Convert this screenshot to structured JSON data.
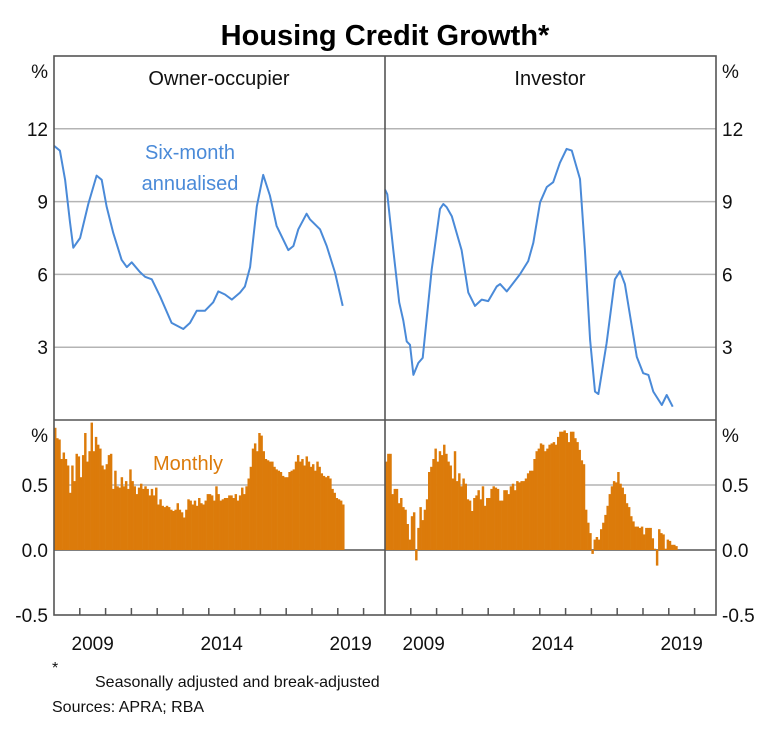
{
  "chart_data": [
    {
      "type": "line",
      "title": "Housing Credit Growth*",
      "panel": "Owner-occupier",
      "ylabel": "%",
      "ylim": [
        0,
        15
      ],
      "yticks": [
        3,
        6,
        9,
        12
      ],
      "xlim": [
        2008,
        2020.83
      ],
      "xticklabels": [
        "2009",
        "2014",
        "2019"
      ],
      "grid": true,
      "series": [
        {
          "name": "Six-month annualised",
          "color": "#4a8ad8",
          "x": [
            2008.0,
            2008.23,
            2008.43,
            2008.62,
            2008.75,
            2009.01,
            2009.33,
            2009.65,
            2009.85,
            2010.04,
            2010.3,
            2010.62,
            2010.82,
            2011.01,
            2011.33,
            2011.53,
            2011.79,
            2012.11,
            2012.56,
            2013.01,
            2013.27,
            2013.53,
            2013.85,
            2014.17,
            2014.37,
            2014.63,
            2014.89,
            2015.21,
            2015.4,
            2015.6,
            2015.86,
            2016.11,
            2016.37,
            2016.63,
            2017.08,
            2017.28,
            2017.47,
            2017.79,
            2017.92,
            2018.31,
            2018.57,
            2018.89,
            2019.19
          ],
          "y": [
            11.3,
            11.1,
            9.9,
            8.15,
            7.1,
            7.5,
            8.9,
            10.07,
            9.9,
            8.8,
            7.7,
            6.6,
            6.3,
            6.5,
            6.1,
            5.9,
            5.8,
            5.1,
            4.0,
            3.75,
            4.0,
            4.5,
            4.5,
            4.85,
            5.3,
            5.17,
            4.96,
            5.25,
            5.5,
            6.3,
            8.8,
            10.1,
            9.25,
            8.0,
            7.0,
            7.17,
            7.86,
            8.5,
            8.27,
            7.86,
            7.17,
            6.08,
            4.7
          ]
        }
      ]
    },
    {
      "type": "line",
      "panel": "Investor",
      "ylabel": "%",
      "ylim": [
        0,
        15
      ],
      "yticks": [
        3,
        6,
        9,
        12
      ],
      "xlim": [
        2008,
        2020.83
      ],
      "xticklabels": [
        "2009",
        "2014",
        "2019"
      ],
      "grid": true,
      "series": [
        {
          "color": "#4a8ad8",
          "x": [
            2008.0,
            2008.09,
            2008.32,
            2008.55,
            2008.71,
            2008.84,
            2008.97,
            2009.1,
            2009.29,
            2009.46,
            2009.81,
            2010.13,
            2010.26,
            2010.39,
            2010.59,
            2010.97,
            2011.23,
            2011.49,
            2011.75,
            2012.0,
            2012.33,
            2012.46,
            2012.72,
            2013.23,
            2013.55,
            2013.75,
            2014.01,
            2014.27,
            2014.52,
            2014.78,
            2015.04,
            2015.24,
            2015.56,
            2015.75,
            2015.95,
            2016.14,
            2016.27,
            2016.59,
            2016.91,
            2017.11,
            2017.3,
            2017.76,
            2018.01,
            2018.21,
            2018.4,
            2018.73,
            2018.92,
            2019.15
          ],
          "y": [
            9.5,
            9.3,
            7.0,
            4.85,
            4.1,
            3.24,
            3.1,
            1.86,
            2.35,
            2.56,
            6.2,
            8.7,
            8.9,
            8.77,
            8.4,
            7.0,
            5.25,
            4.7,
            4.96,
            4.9,
            5.5,
            5.6,
            5.3,
            6.0,
            6.55,
            7.3,
            8.97,
            9.6,
            9.8,
            10.6,
            11.17,
            11.1,
            9.93,
            7.0,
            3.3,
            1.17,
            1.07,
            3.17,
            5.8,
            6.13,
            5.6,
            2.6,
            1.93,
            1.86,
            1.17,
            0.62,
            1.03,
            0.55
          ]
        }
      ]
    },
    {
      "type": "bar",
      "panel": "Owner-occupier",
      "ylabel": "%",
      "ylim": [
        -0.5,
        1.0
      ],
      "yticks": [
        "-0.5",
        "0.0",
        "0.5"
      ],
      "x_start": "2008-01",
      "frequency": "monthly",
      "series": [
        {
          "name": "Monthly",
          "color": "#dc7b0a",
          "values": [
            0.94,
            0.86,
            0.85,
            0.7,
            0.75,
            0.7,
            0.65,
            0.44,
            0.65,
            0.53,
            0.74,
            0.72,
            0.56,
            0.73,
            0.9,
            0.68,
            0.76,
            0.98,
            0.76,
            0.87,
            0.81,
            0.78,
            0.65,
            0.62,
            0.66,
            0.73,
            0.74,
            0.47,
            0.61,
            0.49,
            0.48,
            0.56,
            0.49,
            0.53,
            0.47,
            0.62,
            0.53,
            0.49,
            0.43,
            0.48,
            0.51,
            0.47,
            0.49,
            0.47,
            0.42,
            0.47,
            0.42,
            0.48,
            0.35,
            0.39,
            0.34,
            0.33,
            0.34,
            0.33,
            0.31,
            0.3,
            0.31,
            0.36,
            0.31,
            0.29,
            0.25,
            0.31,
            0.39,
            0.38,
            0.35,
            0.38,
            0.34,
            0.4,
            0.36,
            0.35,
            0.38,
            0.43,
            0.43,
            0.42,
            0.38,
            0.49,
            0.43,
            0.38,
            0.39,
            0.4,
            0.4,
            0.42,
            0.42,
            0.4,
            0.43,
            0.38,
            0.42,
            0.48,
            0.43,
            0.49,
            0.55,
            0.64,
            0.78,
            0.82,
            0.76,
            0.9,
            0.88,
            0.76,
            0.7,
            0.69,
            0.68,
            0.68,
            0.64,
            0.62,
            0.61,
            0.6,
            0.57,
            0.56,
            0.56,
            0.6,
            0.61,
            0.62,
            0.68,
            0.73,
            0.68,
            0.7,
            0.65,
            0.72,
            0.68,
            0.64,
            0.66,
            0.61,
            0.68,
            0.64,
            0.59,
            0.57,
            0.56,
            0.57,
            0.55,
            0.47,
            0.44,
            0.4,
            0.39,
            0.38,
            0.35
          ]
        }
      ]
    },
    {
      "type": "bar",
      "panel": "Investor",
      "ylabel": "%",
      "ylim": [
        -0.5,
        1.0
      ],
      "yticks": [
        "-0.5",
        "0.0",
        "0.5"
      ],
      "x_start": "2008-01",
      "frequency": "monthly",
      "series": [
        {
          "color": "#dc7b0a",
          "values": [
            0.68,
            0.74,
            0.74,
            0.43,
            0.47,
            0.47,
            0.36,
            0.4,
            0.33,
            0.31,
            0.2,
            0.08,
            0.26,
            0.29,
            -0.08,
            0.17,
            0.33,
            0.23,
            0.31,
            0.39,
            0.6,
            0.64,
            0.7,
            0.78,
            0.68,
            0.76,
            0.73,
            0.81,
            0.74,
            0.68,
            0.65,
            0.55,
            0.76,
            0.53,
            0.59,
            0.49,
            0.55,
            0.51,
            0.39,
            0.38,
            0.3,
            0.4,
            0.42,
            0.46,
            0.39,
            0.49,
            0.34,
            0.4,
            0.4,
            0.47,
            0.49,
            0.48,
            0.47,
            0.38,
            0.38,
            0.46,
            0.46,
            0.43,
            0.49,
            0.51,
            0.46,
            0.53,
            0.52,
            0.53,
            0.53,
            0.55,
            0.59,
            0.61,
            0.61,
            0.7,
            0.76,
            0.78,
            0.82,
            0.81,
            0.76,
            0.78,
            0.81,
            0.82,
            0.83,
            0.81,
            0.87,
            0.91,
            0.91,
            0.92,
            0.9,
            0.83,
            0.91,
            0.91,
            0.86,
            0.83,
            0.77,
            0.69,
            0.66,
            0.31,
            0.21,
            0.13,
            -0.03,
            0.08,
            0.1,
            0.08,
            0.16,
            0.21,
            0.27,
            0.34,
            0.43,
            0.49,
            0.53,
            0.52,
            0.6,
            0.51,
            0.48,
            0.43,
            0.36,
            0.33,
            0.26,
            0.22,
            0.18,
            0.18,
            0.17,
            0.18,
            0.12,
            0.17,
            0.17,
            0.17,
            0.09,
            0.01,
            -0.12,
            0.16,
            0.13,
            0.12,
            0.01,
            0.08,
            0.07,
            0.04,
            0.04,
            0.03
          ]
        }
      ]
    }
  ],
  "labels": {
    "title": "Housing Credit Growth*",
    "panel_left": "Owner-occupier",
    "panel_right": "Investor",
    "unit": "%",
    "line_label_1": "Six-month",
    "line_label_2": "annualised",
    "bar_label": "Monthly",
    "top_ticks": [
      "3",
      "6",
      "9",
      "12"
    ],
    "bottom_ticks": [
      "-0.5",
      "0.0",
      "0.5"
    ],
    "years": [
      "2009",
      "2014",
      "2019"
    ]
  },
  "footnote": {
    "marker": "*",
    "text": "Seasonally adjusted and break-adjusted",
    "sources": "Sources: APRA; RBA"
  }
}
